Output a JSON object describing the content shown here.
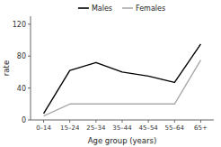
{
  "chart_data": {
    "type": "line",
    "x_label": "Age group (years)",
    "y_label": "rate",
    "categories": [
      "0–14",
      "15–24",
      "25–34",
      "35–44",
      "45–54",
      "55–64",
      "65+"
    ],
    "series": [
      {
        "name": "Males",
        "color": "#000000",
        "values": [
          8,
          62,
          72,
          60,
          55,
          47,
          95
        ]
      },
      {
        "name": "Females",
        "color": "#aaaaaa",
        "values": [
          5,
          20,
          20,
          20,
          20,
          20,
          75
        ]
      }
    ],
    "ylim": [
      0,
      130
    ],
    "yticks": [
      0,
      40,
      80,
      120
    ],
    "grid": false,
    "legend": "upper center"
  }
}
